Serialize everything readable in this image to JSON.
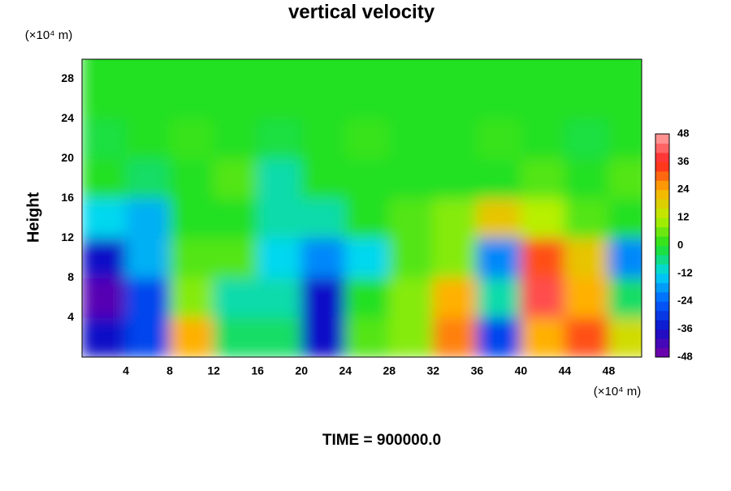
{
  "chart_data": {
    "type": "heatmap",
    "title": "vertical velocity",
    "ylabel": "Height",
    "x_unit": "(×10⁴ m)",
    "y_unit": "(×10⁴ m)",
    "footer": "TIME = 900000.0",
    "x": [
      2,
      6,
      10,
      14,
      18,
      22,
      26,
      30,
      34,
      38,
      42,
      46,
      50
    ],
    "y": [
      2,
      6,
      10,
      14,
      18,
      22,
      26,
      30
    ],
    "z": [
      [
        -36,
        -28,
        24,
        -4,
        -4,
        -36,
        4,
        8,
        28,
        -28,
        24,
        32,
        16
      ],
      [
        -44,
        -28,
        8,
        -8,
        -8,
        -36,
        0,
        8,
        24,
        -8,
        40,
        24,
        -4
      ],
      [
        -36,
        -16,
        4,
        4,
        -12,
        -20,
        -12,
        4,
        8,
        -20,
        32,
        20,
        -20
      ],
      [
        -12,
        -16,
        0,
        0,
        -8,
        -8,
        0,
        4,
        8,
        20,
        12,
        4,
        0
      ],
      [
        0,
        -4,
        0,
        4,
        -8,
        0,
        0,
        0,
        0,
        0,
        4,
        0,
        4
      ],
      [
        -2,
        0,
        2,
        0,
        -2,
        0,
        2,
        0,
        0,
        2,
        0,
        -2,
        0
      ],
      [
        0,
        0,
        0,
        0,
        0,
        0,
        0,
        0,
        0,
        0,
        0,
        0,
        0
      ],
      [
        0,
        0,
        0,
        0,
        0,
        0,
        0,
        0,
        0,
        0,
        0,
        0,
        0
      ]
    ],
    "xlim": [
      0,
      51
    ],
    "ylim": [
      0,
      30
    ],
    "xticks": [
      4,
      8,
      12,
      16,
      20,
      24,
      28,
      32,
      36,
      40,
      44,
      48
    ],
    "yticks": [
      4,
      8,
      12,
      16,
      20,
      24,
      28
    ],
    "clim": [
      -48,
      48
    ],
    "cticks": [
      -48,
      -36,
      -24,
      -12,
      0,
      12,
      24,
      36,
      48
    ],
    "colors": [
      "#7a00a8",
      "#1010c8",
      "#0060ff",
      "#00d8f0",
      "#20e020",
      "#b8f000",
      "#ffb000",
      "#ff2020",
      "#ffa8a8"
    ]
  }
}
